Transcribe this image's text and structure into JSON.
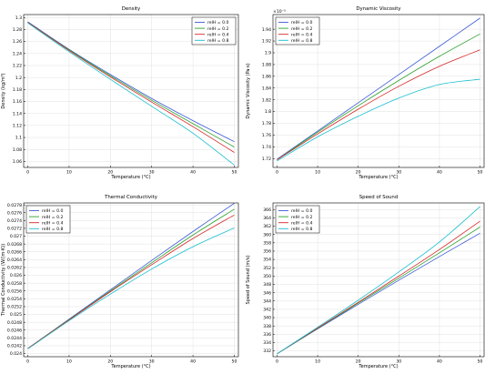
{
  "chart_data": [
    {
      "type": "line",
      "title": "Density",
      "xlabel": "Temperature (°C)",
      "ylabel": "Density (kg/m³)",
      "xlim": [
        -1,
        51
      ],
      "ylim": [
        1.05,
        1.305
      ],
      "x_ticks": [
        "0",
        "10",
        "20",
        "30",
        "40",
        "50"
      ],
      "y_ticks": [
        "1.06",
        "1.08",
        "1.1",
        "1.12",
        "1.14",
        "1.16",
        "1.18",
        "1.2",
        "1.22",
        "1.24",
        "1.26",
        "1.28",
        "1.3"
      ],
      "y_exponent": "",
      "legend_position": "top-right",
      "x": [
        0,
        10,
        20,
        30,
        40,
        50
      ],
      "series": [
        {
          "name": "relH = 0.0",
          "color": "#3b5bd6",
          "values": [
            1.293,
            1.247,
            1.205,
            1.165,
            1.128,
            1.093
          ]
        },
        {
          "name": "relH = 0.2",
          "color": "#2ca02c",
          "values": [
            1.292,
            1.246,
            1.203,
            1.162,
            1.123,
            1.084
          ]
        },
        {
          "name": "relH = 0.4",
          "color": "#d62728",
          "values": [
            1.292,
            1.245,
            1.201,
            1.159,
            1.118,
            1.075
          ]
        },
        {
          "name": "relH = 0.8",
          "color": "#17becf",
          "values": [
            1.291,
            1.243,
            1.197,
            1.152,
            1.107,
            1.054
          ]
        }
      ]
    },
    {
      "type": "line",
      "title": "Dynamic Viscosity",
      "xlabel": "Temperature (°C)",
      "ylabel": "Dynamic Viscosity (Pa·s)",
      "xlim": [
        -1,
        51
      ],
      "ylim": [
        1.705,
        1.965
      ],
      "x_ticks": [
        "0",
        "10",
        "20",
        "30",
        "40",
        "50"
      ],
      "y_ticks": [
        "1.72",
        "1.74",
        "1.76",
        "1.78",
        "1.8",
        "1.82",
        "1.84",
        "1.86",
        "1.88",
        "1.9",
        "1.92",
        "1.94"
      ],
      "y_exponent": "×10⁻⁵",
      "legend_position": "top-left",
      "x": [
        0,
        10,
        20,
        30,
        40,
        50
      ],
      "series": [
        {
          "name": "relH = 0.0",
          "color": "#3b5bd6",
          "values": [
            1.719,
            1.767,
            1.815,
            1.863,
            1.911,
            1.959
          ]
        },
        {
          "name": "relH = 0.2",
          "color": "#2ca02c",
          "values": [
            1.718,
            1.765,
            1.81,
            1.853,
            1.894,
            1.932
          ]
        },
        {
          "name": "relH = 0.4",
          "color": "#d62728",
          "values": [
            1.718,
            1.762,
            1.804,
            1.843,
            1.877,
            1.905
          ]
        },
        {
          "name": "relH = 0.8",
          "color": "#17becf",
          "values": [
            1.716,
            1.757,
            1.792,
            1.823,
            1.846,
            1.855
          ]
        }
      ]
    },
    {
      "type": "line",
      "title": "Thermal Conductivity",
      "xlabel": "Temperature (°C)",
      "ylabel": "Thermal Conductivity (W/(m·K))",
      "xlim": [
        -1,
        51
      ],
      "ylim": [
        0.02392,
        0.02785
      ],
      "x_ticks": [
        "0",
        "10",
        "20",
        "30",
        "40",
        "50"
      ],
      "y_ticks": [
        "0.024",
        "0.0242",
        "0.0244",
        "0.0246",
        "0.0248",
        "0.025",
        "0.0252",
        "0.0254",
        "0.0256",
        "0.0258",
        "0.026",
        "0.0262",
        "0.0264",
        "0.0266",
        "0.0268",
        "0.027",
        "0.0272",
        "0.0274",
        "0.0276",
        "0.0278"
      ],
      "y_exponent": "",
      "legend_position": "top-left",
      "x": [
        0,
        10,
        20,
        30,
        40,
        50
      ],
      "series": [
        {
          "name": "relH = 0.0",
          "color": "#3b5bd6",
          "values": [
            0.02413,
            0.02488,
            0.02563,
            0.02638,
            0.02712,
            0.02784
          ]
        },
        {
          "name": "relH = 0.2",
          "color": "#2ca02c",
          "values": [
            0.02413,
            0.02487,
            0.0256,
            0.02632,
            0.02703,
            0.02769
          ]
        },
        {
          "name": "relH = 0.4",
          "color": "#d62728",
          "values": [
            0.02413,
            0.02486,
            0.02558,
            0.02627,
            0.02694,
            0.02754
          ]
        },
        {
          "name": "relH = 0.8",
          "color": "#17becf",
          "values": [
            0.02412,
            0.02484,
            0.02552,
            0.02616,
            0.02673,
            0.02721
          ]
        }
      ]
    },
    {
      "type": "line",
      "title": "Speed of Sound",
      "xlabel": "Temperature (°C)",
      "ylabel": "Speed of Sound (m/s)",
      "xlim": [
        -1,
        51
      ],
      "ylim": [
        330.6,
        367.6
      ],
      "x_ticks": [
        "0",
        "10",
        "20",
        "30",
        "40",
        "50"
      ],
      "y_ticks": [
        "332",
        "334",
        "336",
        "338",
        "340",
        "342",
        "344",
        "346",
        "348",
        "350",
        "352",
        "354",
        "356",
        "358",
        "360",
        "362",
        "364",
        "366"
      ],
      "y_exponent": "",
      "legend_position": "top-left",
      "x": [
        0,
        10,
        20,
        30,
        40,
        50
      ],
      "series": [
        {
          "name": "relH = 0.0",
          "color": "#3b5bd6",
          "values": [
            331.3,
            337.3,
            343.2,
            349.0,
            354.7,
            360.3
          ]
        },
        {
          "name": "relH = 0.2",
          "color": "#2ca02c",
          "values": [
            331.3,
            337.4,
            343.5,
            349.5,
            355.6,
            361.8
          ]
        },
        {
          "name": "relH = 0.4",
          "color": "#d62728",
          "values": [
            331.3,
            337.5,
            343.7,
            350.0,
            356.4,
            363.2
          ]
        },
        {
          "name": "relH = 0.8",
          "color": "#17becf",
          "values": [
            331.3,
            337.7,
            344.2,
            351.0,
            358.2,
            366.7
          ]
        }
      ]
    }
  ]
}
